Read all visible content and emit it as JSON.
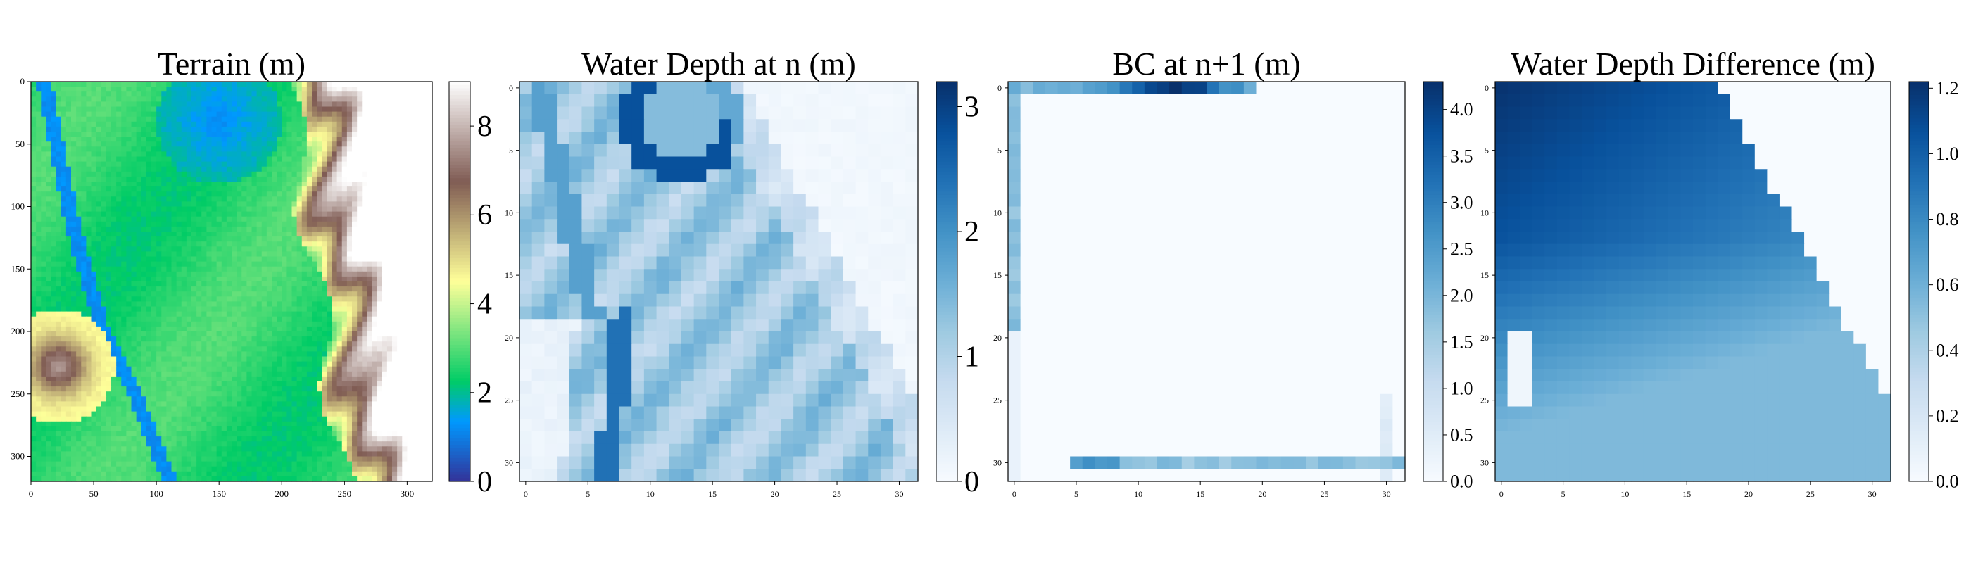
{
  "figure": {
    "background": "#ffffff"
  },
  "chart_data": [
    {
      "type": "heatmap",
      "title": "Terrain (m)",
      "colormap": "terrain",
      "grid": false,
      "xlim": [
        0,
        320
      ],
      "ylim": [
        320,
        0
      ],
      "xticks": [
        "0",
        "50",
        "100",
        "150",
        "200",
        "250",
        "300"
      ],
      "yticks": [
        "0",
        "50",
        "100",
        "150",
        "200",
        "250",
        "300"
      ],
      "colorbar": {
        "min": 0,
        "max": 9,
        "ticks": [
          "0",
          "2",
          "4",
          "6",
          "8"
        ]
      }
    },
    {
      "type": "heatmap",
      "title": "Water Depth at n (m)",
      "colormap": "Blues",
      "grid": false,
      "xlim": [
        0,
        31
      ],
      "ylim": [
        31,
        0
      ],
      "xticks": [
        "0",
        "5",
        "10",
        "15",
        "20",
        "25",
        "30"
      ],
      "yticks": [
        "0",
        "5",
        "10",
        "15",
        "20",
        "25",
        "30"
      ],
      "colorbar": {
        "min": 0,
        "max": 3.2,
        "ticks": [
          "0",
          "1",
          "2",
          "3"
        ]
      }
    },
    {
      "type": "heatmap",
      "title": "BC at n+1 (m)",
      "colormap": "Blues",
      "grid": false,
      "xlim": [
        0,
        31
      ],
      "ylim": [
        31,
        0
      ],
      "xticks": [
        "0",
        "5",
        "10",
        "15",
        "20",
        "25",
        "30"
      ],
      "yticks": [
        "0",
        "5",
        "10",
        "15",
        "20",
        "25",
        "30"
      ],
      "colorbar": {
        "min": 0,
        "max": 4.3,
        "ticks": [
          "0.0",
          "0.5",
          "1.0",
          "1.5",
          "2.0",
          "2.5",
          "3.0",
          "3.5",
          "4.0"
        ]
      }
    },
    {
      "type": "heatmap",
      "title": "Water Depth Difference (m)",
      "colormap": "Blues",
      "grid": false,
      "xlim": [
        0,
        31
      ],
      "ylim": [
        31,
        0
      ],
      "xticks": [
        "0",
        "5",
        "10",
        "15",
        "20",
        "25",
        "30"
      ],
      "yticks": [
        "0",
        "5",
        "10",
        "15",
        "20",
        "25",
        "30"
      ],
      "colorbar": {
        "min": 0,
        "max": 1.22,
        "ticks": [
          "0.0",
          "0.2",
          "0.4",
          "0.6",
          "0.8",
          "1.0",
          "1.2"
        ]
      }
    }
  ]
}
